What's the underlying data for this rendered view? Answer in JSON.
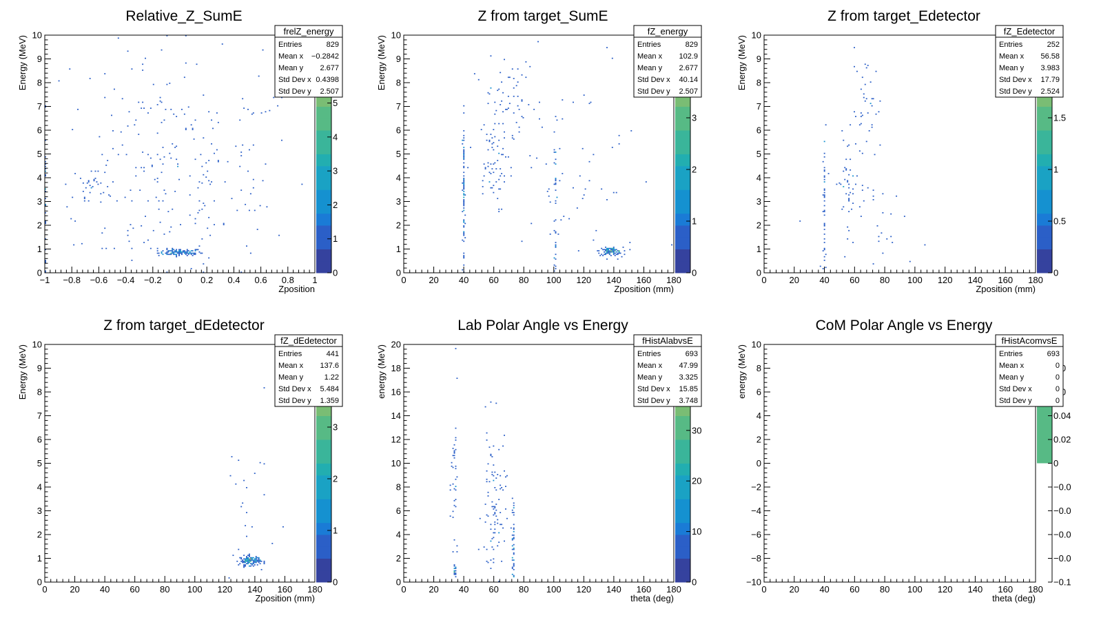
{
  "chart_data": [
    {
      "type": "heatmap",
      "title": "Relative_Z_SumE",
      "xlabel": "Zposition",
      "ylabel": "Energy (MeV)",
      "xlim": [
        -1,
        1
      ],
      "ylim": [
        0,
        10
      ],
      "xticks": [
        -1,
        -0.8,
        -0.6,
        -0.4,
        -0.2,
        0,
        0.2,
        0.4,
        0.6,
        0.8,
        1
      ],
      "xtick_labels": [
        "−1",
        "−0.8",
        "−0.6",
        "−0.4",
        "−0.2",
        "0",
        "0.2",
        "0.4",
        "0.6",
        "0.8",
        "1"
      ],
      "yticks": [
        0,
        1,
        2,
        3,
        4,
        5,
        6,
        7,
        8,
        9,
        10
      ],
      "ytick_labels": [
        "0",
        "1",
        "2",
        "3",
        "4",
        "5",
        "6",
        "7",
        "8",
        "9",
        "10"
      ],
      "colorbar": {
        "max": 7,
        "ticks": [
          0,
          1,
          2,
          3,
          4,
          5,
          6
        ],
        "labels": [
          "0",
          "1",
          "2",
          "3",
          "4",
          "5",
          "6"
        ]
      },
      "stats": {
        "name": "frelZ_energy",
        "rows": [
          [
            "Entries",
            "829"
          ],
          [
            "Mean x",
            "−0.2842"
          ],
          [
            "Mean y",
            "2.677"
          ],
          [
            "Std Dev x",
            "0.4398"
          ],
          [
            "Std Dev y",
            "2.507"
          ]
        ]
      },
      "clusters": [
        {
          "x": 0.0,
          "y": 0.85,
          "sx": 0.08,
          "sy": 0.07,
          "n": 120
        },
        {
          "x": -1.0,
          "y": 3.0,
          "sx": 0.004,
          "sy": 2.7,
          "n": 60
        },
        {
          "x": -0.65,
          "y": 3.7,
          "sx": 0.05,
          "sy": 0.25,
          "n": 25
        },
        {
          "x": -0.2,
          "y": 4.5,
          "sx": 0.4,
          "sy": 2.8,
          "n": 170
        },
        {
          "x": 0.2,
          "y": 3.5,
          "sx": 0.35,
          "sy": 2.5,
          "n": 110
        }
      ]
    },
    {
      "type": "heatmap",
      "title": "Z from target_SumE",
      "xlabel": "Zposition (mm)",
      "ylabel": "Energy (MeV)",
      "xlim": [
        0,
        180
      ],
      "ylim": [
        0,
        10
      ],
      "xticks": [
        0,
        20,
        40,
        60,
        80,
        100,
        120,
        140,
        160,
        180
      ],
      "xtick_labels": [
        "0",
        "20",
        "40",
        "60",
        "80",
        "100",
        "120",
        "140",
        "160",
        "180"
      ],
      "yticks": [
        0,
        1,
        2,
        3,
        4,
        5,
        6,
        7,
        8,
        9,
        10
      ],
      "ytick_labels": [
        "0",
        "1",
        "2",
        "3",
        "4",
        "5",
        "6",
        "7",
        "8",
        "9",
        "10"
      ],
      "colorbar": {
        "max": 4.6,
        "ticks": [
          0,
          1,
          2,
          3,
          4
        ],
        "labels": [
          "0",
          "1",
          "2",
          "3",
          "4"
        ]
      },
      "stats": {
        "name": "fZ_energy",
        "rows": [
          [
            "Entries",
            "829"
          ],
          [
            "Mean x",
            "102.9"
          ],
          [
            "Mean y",
            "2.677"
          ],
          [
            "Std Dev x",
            "40.14"
          ],
          [
            "Std Dev y",
            "2.507"
          ]
        ]
      },
      "clusters": [
        {
          "x": 138,
          "y": 0.9,
          "sx": 4,
          "sy": 0.08,
          "n": 110
        },
        {
          "x": 40,
          "y": 3.3,
          "sx": 0.3,
          "sy": 2.0,
          "n": 90
        },
        {
          "x": 101,
          "y": 3.0,
          "sx": 0.3,
          "sy": 2.0,
          "n": 40
        },
        {
          "x": 58,
          "y": 4.5,
          "sx": 5,
          "sy": 1.0,
          "n": 60
        },
        {
          "x": 68,
          "y": 7.2,
          "sx": 6,
          "sy": 1.0,
          "n": 50
        },
        {
          "x": 110,
          "y": 4.0,
          "sx": 30,
          "sy": 3.0,
          "n": 80
        }
      ]
    },
    {
      "type": "heatmap",
      "title": "Z from target_Edetector",
      "xlabel": "Zposition (mm)",
      "ylabel": "Energy (MeV)",
      "xlim": [
        0,
        180
      ],
      "ylim": [
        0,
        10
      ],
      "xticks": [
        0,
        20,
        40,
        60,
        80,
        100,
        120,
        140,
        160,
        180
      ],
      "xtick_labels": [
        "0",
        "20",
        "40",
        "60",
        "80",
        "100",
        "120",
        "140",
        "160",
        "180"
      ],
      "yticks": [
        0,
        1,
        2,
        3,
        4,
        5,
        6,
        7,
        8,
        9,
        10
      ],
      "ytick_labels": [
        "0",
        "1",
        "2",
        "3",
        "4",
        "5",
        "6",
        "7",
        "8",
        "9",
        "10"
      ],
      "colorbar": {
        "max": 2.3,
        "ticks": [
          0,
          0.5,
          1,
          1.5,
          2
        ],
        "labels": [
          "0",
          "0.5",
          "1",
          "1.5",
          "2"
        ]
      },
      "stats": {
        "name": "fZ_Edetector",
        "rows": [
          [
            "Entries",
            "252"
          ],
          [
            "Mean x",
            "56.58"
          ],
          [
            "Mean y",
            "3.983"
          ],
          [
            "Std Dev x",
            "17.79"
          ],
          [
            "Std Dev y",
            "2.524"
          ]
        ]
      },
      "clusters": [
        {
          "x": 40,
          "y": 2.5,
          "sx": 0.3,
          "sy": 1.8,
          "n": 50
        },
        {
          "x": 55,
          "y": 3.8,
          "sx": 4,
          "sy": 1.0,
          "n": 45
        },
        {
          "x": 68,
          "y": 6.8,
          "sx": 5,
          "sy": 1.2,
          "n": 40
        },
        {
          "x": 80,
          "y": 2.0,
          "sx": 15,
          "sy": 1.0,
          "n": 30
        }
      ]
    },
    {
      "type": "heatmap",
      "title": "Z from target_dEdetector",
      "xlabel": "Zposition (mm)",
      "ylabel": "Energy (MeV)",
      "xlim": [
        0,
        180
      ],
      "ylim": [
        0,
        10
      ],
      "xticks": [
        0,
        20,
        40,
        60,
        80,
        100,
        120,
        140,
        160,
        180
      ],
      "xtick_labels": [
        "0",
        "20",
        "40",
        "60",
        "80",
        "100",
        "120",
        "140",
        "160",
        "180"
      ],
      "yticks": [
        0,
        1,
        2,
        3,
        4,
        5,
        6,
        7,
        8,
        9,
        10
      ],
      "ytick_labels": [
        "0",
        "1",
        "2",
        "3",
        "4",
        "5",
        "6",
        "7",
        "8",
        "9",
        "10"
      ],
      "colorbar": {
        "max": 4.6,
        "ticks": [
          0,
          1,
          2,
          3,
          4
        ],
        "labels": [
          "0",
          "1",
          "2",
          "3",
          "4"
        ]
      },
      "stats": {
        "name": "fZ_dEdetector",
        "rows": [
          [
            "Entries",
            "441"
          ],
          [
            "Mean x",
            "137.6"
          ],
          [
            "Mean y",
            "1.22"
          ],
          [
            "Std Dev x",
            "5.484"
          ],
          [
            "Std Dev y",
            "1.359"
          ]
        ]
      },
      "clusters": [
        {
          "x": 137,
          "y": 0.9,
          "sx": 3.5,
          "sy": 0.1,
          "n": 140
        },
        {
          "x": 135,
          "y": 3.0,
          "sx": 10,
          "sy": 2.0,
          "n": 25
        }
      ]
    },
    {
      "type": "heatmap",
      "title": "Lab Polar Angle vs Energy",
      "xlabel": "theta (deg)",
      "ylabel": "energy (MeV)",
      "xlim": [
        0,
        180
      ],
      "ylim": [
        0,
        20
      ],
      "xticks": [
        0,
        20,
        40,
        60,
        80,
        100,
        120,
        140,
        160,
        180
      ],
      "xtick_labels": [
        "0",
        "20",
        "40",
        "60",
        "80",
        "100",
        "120",
        "140",
        "160",
        "180"
      ],
      "yticks": [
        0,
        2,
        4,
        6,
        8,
        10,
        12,
        14,
        16,
        18,
        20
      ],
      "ytick_labels": [
        "0",
        "2",
        "4",
        "6",
        "8",
        "10",
        "12",
        "14",
        "16",
        "18",
        "20"
      ],
      "colorbar": {
        "max": 47,
        "ticks": [
          0,
          10,
          20,
          30,
          40
        ],
        "labels": [
          "0",
          "10",
          "20",
          "30",
          "40"
        ]
      },
      "stats": {
        "name": "fHistAlabvsE",
        "rows": [
          [
            "Entries",
            "693"
          ],
          [
            "Mean x",
            "47.99"
          ],
          [
            "Mean y",
            "3.325"
          ],
          [
            "Std Dev x",
            "15.85"
          ],
          [
            "Std Dev y",
            "3.748"
          ]
        ]
      },
      "clusters": [
        {
          "x": 34,
          "y": 0.9,
          "sx": 0.6,
          "sy": 0.2,
          "n": 20
        },
        {
          "x": 34,
          "y": 8.0,
          "sx": 1.2,
          "sy": 4.0,
          "n": 40
        },
        {
          "x": 60,
          "y": 6.0,
          "sx": 4,
          "sy": 3.5,
          "n": 100
        },
        {
          "x": 73,
          "y": 3.5,
          "sx": 0.3,
          "sy": 2.0,
          "n": 50
        }
      ]
    },
    {
      "type": "heatmap",
      "title": "CoM Polar Angle vs Energy",
      "xlabel": "theta (deg)",
      "ylabel": "energy (MeV)",
      "xlim": [
        0,
        180
      ],
      "ylim": [
        -10,
        10
      ],
      "xticks": [
        0,
        20,
        40,
        60,
        80,
        100,
        120,
        140,
        160,
        180
      ],
      "xtick_labels": [
        "0",
        "20",
        "40",
        "60",
        "80",
        "100",
        "120",
        "140",
        "160",
        "180"
      ],
      "yticks": [
        -10,
        -8,
        -6,
        -4,
        -2,
        0,
        2,
        4,
        6,
        8,
        10
      ],
      "ytick_labels": [
        "−10",
        "−8",
        "−6",
        "−4",
        "−2",
        "0",
        "2",
        "4",
        "6",
        "8",
        "10"
      ],
      "colorbar": {
        "min": -0.1,
        "max": 0.1,
        "filled_min": 0,
        "filled_max": 0.1,
        "ticks": [
          -0.1,
          -0.08,
          -0.06,
          -0.04,
          -0.02,
          0,
          0.02,
          0.04,
          0.06,
          0.08
        ],
        "labels": [
          "−0.1",
          "−0.0",
          "−0.0",
          "−0.0",
          "−0.0",
          "0",
          "0.02",
          "0.04",
          "0.0",
          "0.0"
        ]
      },
      "stats": {
        "name": "fHistAcomvsE",
        "rows": [
          [
            "Entries",
            "693"
          ],
          [
            "Mean x",
            "0"
          ],
          [
            "Mean y",
            "0"
          ],
          [
            "Std Dev x",
            "0"
          ],
          [
            "Std Dev y",
            "0"
          ]
        ]
      },
      "clusters": []
    }
  ]
}
